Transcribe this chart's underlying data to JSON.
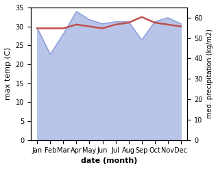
{
  "months": [
    "Jan",
    "Feb",
    "Mar",
    "Apr",
    "May",
    "Jun",
    "Jul",
    "Aug",
    "Sep",
    "Oct",
    "Nov",
    "Dec"
  ],
  "month_indices": [
    0,
    1,
    2,
    3,
    4,
    5,
    6,
    7,
    8,
    9,
    10,
    11
  ],
  "temp": [
    29.5,
    29.5,
    29.5,
    30.5,
    30.0,
    29.5,
    30.5,
    31.0,
    32.5,
    31.0,
    30.5,
    30.0
  ],
  "precip": [
    55.0,
    42.0,
    52.0,
    63.0,
    59.0,
    57.0,
    58.0,
    58.0,
    49.0,
    58.0,
    60.0,
    57.0
  ],
  "temp_color": "#c0504d",
  "precip_color": "#b8c4e8",
  "precip_edge_color": "#8899dd",
  "xlabel": "date (month)",
  "ylabel_left": "max temp (C)",
  "ylabel_right": "med. precipitation (kg/m2)",
  "ylim_left": [
    0,
    35
  ],
  "ylim_right": [
    0,
    65
  ],
  "yticks_left": [
    0,
    5,
    10,
    15,
    20,
    25,
    30,
    35
  ],
  "yticks_right": [
    0,
    10,
    20,
    30,
    40,
    50,
    60
  ],
  "background_color": "#ffffff",
  "temp_linewidth": 1.8,
  "precip_linewidth": 1.0
}
